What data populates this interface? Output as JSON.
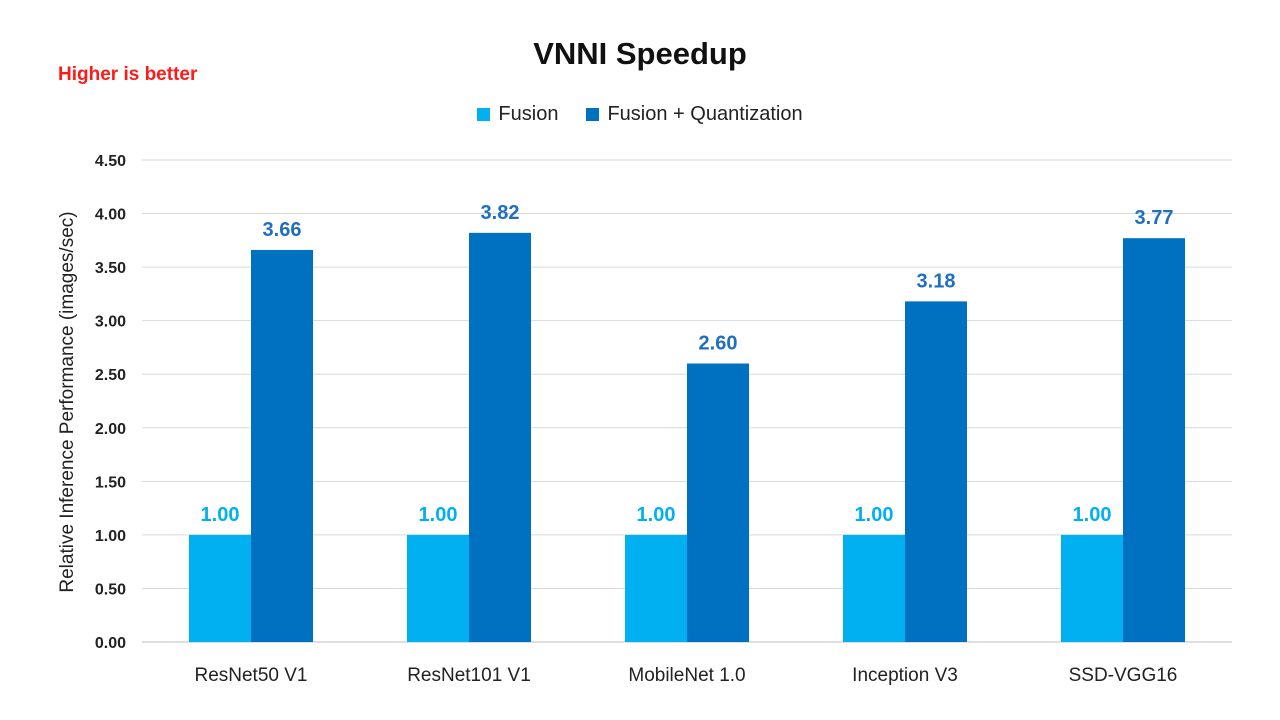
{
  "note": "Higher is better",
  "chart_data": {
    "type": "bar",
    "title": "VNNI Speedup",
    "xlabel": "",
    "ylabel": "Relative Inference Performance (images/sec)",
    "categories": [
      "ResNet50 V1",
      "ResNet101 V1",
      "MobileNet 1.0",
      "Inception V3",
      "SSD-VGG16"
    ],
    "series": [
      {
        "name": "Fusion",
        "values": [
          1.0,
          1.0,
          1.0,
          1.0,
          1.0
        ],
        "labels": [
          "1.00",
          "1.00",
          "1.00",
          "1.00",
          "1.00"
        ],
        "color": "#00b0f0",
        "label_color": "#00b0f0"
      },
      {
        "name": "Fusion + Quantization",
        "values": [
          3.66,
          3.82,
          2.6,
          3.18,
          3.77
        ],
        "labels": [
          "3.66",
          "3.82",
          "2.60",
          "3.18",
          "3.77"
        ],
        "color": "#0070c0",
        "label_color": "#1f6fc0"
      }
    ],
    "ylim": [
      0,
      4.5
    ],
    "yticks": [
      "0.00",
      "0.50",
      "1.00",
      "1.50",
      "2.00",
      "2.50",
      "3.00",
      "3.50",
      "4.00",
      "4.50"
    ],
    "grid": true,
    "legend_position": "top"
  }
}
